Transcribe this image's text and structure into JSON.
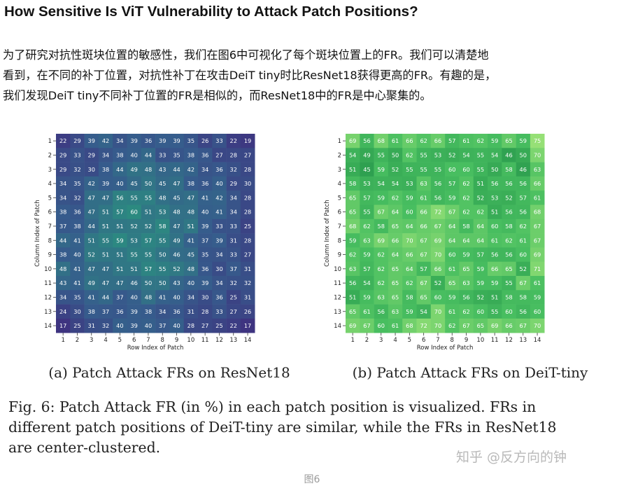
{
  "article": {
    "title": "How Sensitive Is ViT Vulnerability to Attack Patch Positions?",
    "paragraph_lines": [
      "为了研究对抗性斑块位置的敏感性，我们在图6中可视化了每个斑块位置上的FR。我们可以清楚地",
      "看到，在不同的补丁位置，对抗性补丁在攻击DeiT tiny时比ResNet18获得更高的FR。有趣的是，",
      "我们发现DeiT tiny不同补丁位置的FR是相似的，而ResNet18中的FR是中心聚集的。"
    ],
    "caption_lines": [
      "Fig. 6: Patch Attack FR (in %) in each patch position is visualized. FRs in",
      "different patch positions of DeiT-tiny are similar, while the FRs in ResNet18",
      "are center-clustered."
    ],
    "watermark": "知乎 @反方向的钟",
    "figure_label": "图6"
  },
  "chart_data": [
    {
      "type": "heatmap",
      "title": "(a) Patch Attack FRs on ResNet18",
      "xlabel": "Row Index of Patch",
      "ylabel": "Column Index of Patch",
      "x": [
        1,
        2,
        3,
        4,
        5,
        6,
        7,
        8,
        9,
        10,
        11,
        12,
        13,
        14
      ],
      "y": [
        1,
        2,
        3,
        4,
        5,
        6,
        7,
        8,
        9,
        10,
        11,
        12,
        13,
        14
      ],
      "colormap": "viridis-dark",
      "values": [
        [
          22,
          29,
          39,
          42,
          34,
          39,
          36,
          39,
          39,
          35,
          26,
          33,
          22,
          19
        ],
        [
          29,
          33,
          29,
          34,
          38,
          40,
          44,
          33,
          35,
          38,
          36,
          27,
          28,
          27
        ],
        [
          29,
          32,
          30,
          38,
          44,
          49,
          48,
          43,
          44,
          42,
          34,
          36,
          32,
          28
        ],
        [
          34,
          35,
          42,
          39,
          40,
          45,
          50,
          45,
          47,
          38,
          36,
          40,
          29,
          30
        ],
        [
          34,
          32,
          47,
          47,
          56,
          55,
          55,
          48,
          45,
          47,
          41,
          42,
          34,
          28
        ],
        [
          38,
          36,
          47,
          51,
          57,
          60,
          51,
          53,
          48,
          48,
          40,
          41,
          34,
          28
        ],
        [
          37,
          38,
          44,
          51,
          51,
          52,
          52,
          58,
          47,
          51,
          39,
          33,
          33,
          25
        ],
        [
          44,
          41,
          51,
          55,
          59,
          53,
          57,
          55,
          49,
          41,
          37,
          39,
          31,
          28
        ],
        [
          38,
          40,
          52,
          51,
          51,
          55,
          55,
          50,
          46,
          45,
          35,
          34,
          33,
          27
        ],
        [
          48,
          41,
          47,
          47,
          51,
          51,
          57,
          55,
          52,
          48,
          36,
          30,
          37,
          31
        ],
        [
          43,
          41,
          49,
          47,
          47,
          46,
          50,
          50,
          43,
          40,
          39,
          34,
          32,
          32
        ],
        [
          34,
          35,
          41,
          44,
          37,
          40,
          48,
          41,
          40,
          34,
          30,
          36,
          25,
          31
        ],
        [
          24,
          30,
          38,
          37,
          36,
          39,
          38,
          34,
          36,
          31,
          28,
          33,
          27,
          26
        ],
        [
          17,
          25,
          31,
          32,
          40,
          39,
          40,
          37,
          40,
          28,
          27,
          25,
          22,
          17
        ]
      ]
    },
    {
      "type": "heatmap",
      "title": "(b) Patch Attack FRs on DeiT-tiny",
      "xlabel": "Row Index of Patch",
      "ylabel": "Column Index of Patch",
      "x": [
        1,
        2,
        3,
        4,
        5,
        6,
        7,
        8,
        9,
        10,
        11,
        12,
        13,
        14
      ],
      "y": [
        1,
        2,
        3,
        4,
        5,
        6,
        7,
        8,
        9,
        10,
        11,
        12,
        13,
        14
      ],
      "colormap": "green",
      "values": [
        [
          69,
          56,
          68,
          61,
          66,
          62,
          66,
          57,
          61,
          62,
          59,
          65,
          59,
          75
        ],
        [
          54,
          49,
          55,
          50,
          62,
          55,
          53,
          52,
          54,
          55,
          54,
          46,
          50,
          70
        ],
        [
          51,
          45,
          59,
          52,
          55,
          55,
          55,
          60,
          60,
          55,
          50,
          58,
          46,
          63
        ],
        [
          58,
          53,
          54,
          54,
          53,
          63,
          56,
          57,
          62,
          51,
          56,
          56,
          56,
          66
        ],
        [
          65,
          57,
          59,
          62,
          59,
          61,
          56,
          59,
          62,
          52,
          53,
          52,
          57,
          61
        ],
        [
          65,
          55,
          67,
          64,
          60,
          66,
          72,
          67,
          62,
          62,
          51,
          56,
          56,
          68
        ],
        [
          68,
          62,
          58,
          65,
          64,
          66,
          67,
          64,
          58,
          64,
          60,
          58,
          62,
          67
        ],
        [
          59,
          63,
          69,
          66,
          70,
          67,
          69,
          64,
          64,
          64,
          61,
          62,
          61,
          67
        ],
        [
          62,
          59,
          62,
          64,
          66,
          67,
          70,
          60,
          59,
          57,
          56,
          56,
          60,
          69
        ],
        [
          63,
          57,
          62,
          65,
          64,
          57,
          66,
          61,
          65,
          59,
          66,
          65,
          52,
          71
        ],
        [
          56,
          54,
          62,
          65,
          62,
          67,
          52,
          65,
          63,
          59,
          59,
          55,
          67,
          61
        ],
        [
          51,
          59,
          63,
          65,
          58,
          65,
          60,
          59,
          56,
          52,
          51,
          58,
          58,
          59
        ],
        [
          65,
          61,
          56,
          63,
          59,
          54,
          70,
          61,
          62,
          60,
          55,
          60,
          56,
          60
        ],
        [
          69,
          67,
          60,
          61,
          68,
          72,
          70,
          62,
          67,
          65,
          69,
          66,
          67,
          70
        ]
      ]
    }
  ]
}
